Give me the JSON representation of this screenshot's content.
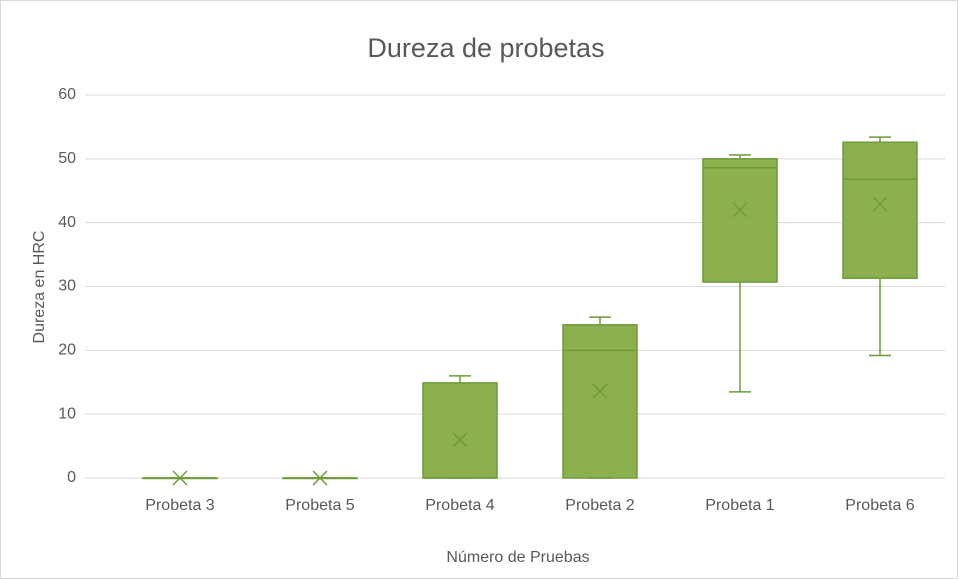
{
  "chart_data": {
    "type": "box",
    "title": "Dureza de probetas",
    "x_label": "Número de Pruebas",
    "y_label": "Dureza en HRC",
    "categories": [
      "Probeta 3",
      "Probeta 5",
      "Probeta 4",
      "Probeta 2",
      "Probeta 1",
      "Probeta 6"
    ],
    "boxes": [
      {
        "min": 0,
        "q1": 0,
        "median": 0,
        "q3": 0,
        "max": 0,
        "mean": 0
      },
      {
        "min": 0,
        "q1": 0,
        "median": 0,
        "q3": 0,
        "max": 0,
        "mean": 0
      },
      {
        "min": 0,
        "q1": 0,
        "median": 0,
        "q3": 14.9,
        "max": 16,
        "mean": 6
      },
      {
        "min": 0,
        "q1": 0,
        "median": 20,
        "q3": 24,
        "max": 25.2,
        "mean": 13.6
      },
      {
        "min": 13.5,
        "q1": 30.7,
        "median": 48.6,
        "q3": 50,
        "max": 50.6,
        "mean": 42
      },
      {
        "min": 19.2,
        "q1": 31.3,
        "median": 46.8,
        "q3": 52.6,
        "max": 53.4,
        "mean": 42.9
      }
    ],
    "color": "#8db04e",
    "edge_color": "#6f9a3a",
    "ylim": [
      0,
      60
    ],
    "yticks": [
      0,
      10,
      20,
      30,
      40,
      50,
      60
    ],
    "grid": true
  }
}
